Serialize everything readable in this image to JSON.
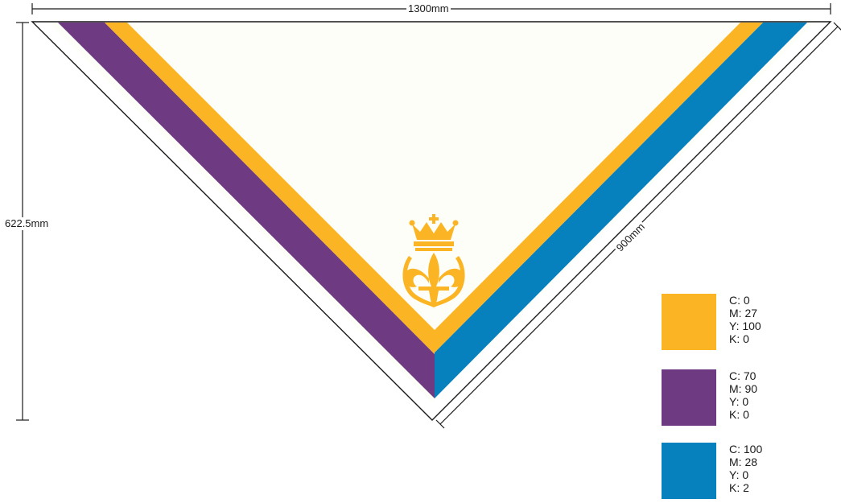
{
  "dimensions": {
    "width": "1300mm",
    "height": "622.5mm",
    "side": "900mm"
  },
  "colors": {
    "yellow": "#FBB524",
    "purple": "#6E3A82",
    "blue": "#0780BE",
    "background": "#FEFEF9",
    "line": "#1a1a1a"
  },
  "emblem_icon": "fleur-de-lis-crown-icon",
  "legend": [
    {
      "color": "#FBB524",
      "c": "C: 0",
      "m": "M: 27",
      "y": "Y: 100",
      "k": "K: 0"
    },
    {
      "color": "#6E3A82",
      "c": "C: 70",
      "m": "M: 90",
      "y": "Y: 0",
      "k": "K: 0"
    },
    {
      "color": "#0780BE",
      "c": "C: 100",
      "m": "M: 28",
      "y": "Y: 0",
      "k": "K: 2"
    }
  ]
}
